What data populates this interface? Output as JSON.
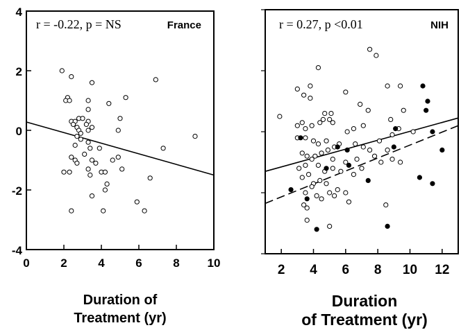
{
  "chart_data": [
    {
      "type": "scatter",
      "panel_label": "France",
      "stat_text": "r = -0.22, p = NS",
      "xlabel_lines": [
        "Duration of",
        "Treatment (yr)"
      ],
      "xlim": [
        0,
        10
      ],
      "ylim": [
        -4,
        4
      ],
      "x_ticks": [
        0,
        2,
        4,
        6,
        8,
        10
      ],
      "y_ticks": [
        -4,
        -2,
        0,
        2,
        4
      ],
      "x_tick_labels": [
        "0",
        "2",
        "4",
        "6",
        "8",
        "10"
      ],
      "y_tick_labels": [
        "-4",
        "-2",
        "0",
        "2",
        "4"
      ],
      "grid": false,
      "series": [
        {
          "marker": "open-circle",
          "points": [
            [
              1.9,
              2.0
            ],
            [
              2.4,
              1.8
            ],
            [
              2.2,
              1.1
            ],
            [
              2.1,
              1.0
            ],
            [
              2.3,
              1.0
            ],
            [
              3.5,
              1.6
            ],
            [
              4.4,
              0.9
            ],
            [
              5.3,
              1.1
            ],
            [
              6.9,
              1.7
            ],
            [
              2.4,
              0.3
            ],
            [
              2.6,
              0.3
            ],
            [
              2.8,
              0.4
            ],
            [
              3.0,
              0.4
            ],
            [
              3.3,
              0.3
            ],
            [
              3.2,
              0.2
            ],
            [
              3.3,
              0.7
            ],
            [
              3.3,
              1.0
            ],
            [
              2.5,
              0.2
            ],
            [
              2.7,
              0.1
            ],
            [
              2.8,
              0.0
            ],
            [
              2.9,
              -0.1
            ],
            [
              2.7,
              -0.2
            ],
            [
              2.9,
              -0.3
            ],
            [
              3.3,
              0.0
            ],
            [
              3.5,
              0.1
            ],
            [
              5.0,
              0.4
            ],
            [
              4.9,
              0.0
            ],
            [
              9.0,
              -0.2
            ],
            [
              2.6,
              -0.5
            ],
            [
              3.3,
              -0.4
            ],
            [
              3.4,
              -0.6
            ],
            [
              3.1,
              -0.8
            ],
            [
              3.9,
              -0.6
            ],
            [
              2.4,
              -0.9
            ],
            [
              2.6,
              -1.0
            ],
            [
              2.7,
              -1.1
            ],
            [
              3.5,
              -1.0
            ],
            [
              3.7,
              -1.1
            ],
            [
              3.3,
              -1.3
            ],
            [
              4.0,
              -1.4
            ],
            [
              4.2,
              -1.4
            ],
            [
              4.9,
              -0.9
            ],
            [
              4.6,
              -1.0
            ],
            [
              5.1,
              -1.3
            ],
            [
              7.3,
              -0.6
            ],
            [
              6.6,
              -1.6
            ],
            [
              2.0,
              -1.4
            ],
            [
              2.3,
              -1.4
            ],
            [
              3.4,
              -1.5
            ],
            [
              4.3,
              -1.8
            ],
            [
              4.2,
              -2.0
            ],
            [
              3.5,
              -2.2
            ],
            [
              5.9,
              -2.4
            ],
            [
              6.3,
              -2.7
            ],
            [
              2.4,
              -2.7
            ],
            [
              4.1,
              -2.7
            ]
          ]
        }
      ],
      "regression_lines": [
        {
          "style": "solid",
          "x": [
            0,
            10
          ],
          "y": [
            0.28,
            -1.5
          ]
        }
      ]
    },
    {
      "type": "scatter",
      "panel_label": "NIH",
      "stat_text": "r = 0.27, p <0.01",
      "xlabel_lines": [
        "Duration",
        "of Treatment (yr)"
      ],
      "xlim": [
        1,
        13
      ],
      "ylim": [
        -4,
        4
      ],
      "x_ticks": [
        2,
        4,
        6,
        8,
        10,
        12
      ],
      "y_ticks": [
        -4,
        -2,
        0,
        2,
        4
      ],
      "x_tick_labels": [
        "2",
        "4",
        "6",
        "8",
        "10",
        "12"
      ],
      "grid": false,
      "series": [
        {
          "marker": "open-circle",
          "points": [
            [
              7.5,
              2.7
            ],
            [
              7.9,
              2.5
            ],
            [
              4.3,
              2.1
            ],
            [
              3.0,
              1.4
            ],
            [
              3.8,
              1.5
            ],
            [
              6.0,
              1.3
            ],
            [
              8.6,
              1.5
            ],
            [
              9.4,
              1.5
            ],
            [
              3.4,
              1.2
            ],
            [
              3.8,
              1.1
            ],
            [
              4.7,
              0.6
            ],
            [
              5.1,
              0.6
            ],
            [
              6.9,
              0.9
            ],
            [
              7.4,
              0.7
            ],
            [
              8.8,
              0.4
            ],
            [
              9.6,
              0.7
            ],
            [
              1.9,
              0.5
            ],
            [
              3.0,
              0.2
            ],
            [
              3.3,
              0.3
            ],
            [
              3.5,
              0.1
            ],
            [
              3.9,
              0.2
            ],
            [
              4.4,
              0.3
            ],
            [
              4.6,
              0.4
            ],
            [
              5.0,
              0.4
            ],
            [
              5.2,
              0.3
            ],
            [
              6.1,
              0.0
            ],
            [
              6.5,
              0.1
            ],
            [
              7.1,
              0.2
            ],
            [
              8.9,
              -0.1
            ],
            [
              9.3,
              0.1
            ],
            [
              10.2,
              0.0
            ],
            [
              3.0,
              -0.2
            ],
            [
              3.5,
              -0.2
            ],
            [
              4.0,
              -0.3
            ],
            [
              4.3,
              -0.4
            ],
            [
              4.8,
              -0.3
            ],
            [
              5.3,
              -0.5
            ],
            [
              5.6,
              -0.4
            ],
            [
              6.6,
              -0.4
            ],
            [
              7.1,
              -0.5
            ],
            [
              7.5,
              -0.6
            ],
            [
              8.1,
              -0.3
            ],
            [
              8.6,
              -0.6
            ],
            [
              3.3,
              -0.7
            ],
            [
              3.6,
              -0.8
            ],
            [
              3.9,
              -0.9
            ],
            [
              4.1,
              -0.8
            ],
            [
              4.5,
              -0.7
            ],
            [
              4.9,
              -0.6
            ],
            [
              5.2,
              -0.9
            ],
            [
              6.0,
              -1.0
            ],
            [
              6.7,
              -0.9
            ],
            [
              7.8,
              -0.8
            ],
            [
              8.2,
              -1.0
            ],
            [
              8.9,
              -0.9
            ],
            [
              9.4,
              -1.0
            ],
            [
              3.1,
              -1.2
            ],
            [
              3.5,
              -1.1
            ],
            [
              4.3,
              -1.1
            ],
            [
              4.7,
              -1.3
            ],
            [
              5.2,
              -1.2
            ],
            [
              5.7,
              -1.3
            ],
            [
              6.5,
              -1.4
            ],
            [
              7.0,
              -1.2
            ],
            [
              3.3,
              -1.5
            ],
            [
              3.7,
              -1.4
            ],
            [
              4.0,
              -1.7
            ],
            [
              4.4,
              -1.6
            ],
            [
              4.8,
              -1.7
            ],
            [
              3.5,
              -2.0
            ],
            [
              3.9,
              -1.8
            ],
            [
              4.2,
              -2.1
            ],
            [
              5.0,
              -2.0
            ],
            [
              5.5,
              -1.9
            ],
            [
              6.0,
              -2.0
            ],
            [
              3.4,
              -2.4
            ],
            [
              3.6,
              -2.5
            ],
            [
              4.5,
              -2.2
            ],
            [
              5.3,
              -2.1
            ],
            [
              6.2,
              -2.3
            ],
            [
              8.5,
              -2.4
            ],
            [
              3.6,
              -2.9
            ],
            [
              5.0,
              -3.1
            ]
          ]
        },
        {
          "marker": "filled-circle",
          "points": [
            [
              10.8,
              1.5
            ],
            [
              11.1,
              1.0
            ],
            [
              11.0,
              0.7
            ],
            [
              9.1,
              0.1
            ],
            [
              11.4,
              0.0
            ],
            [
              3.2,
              -0.2
            ],
            [
              5.5,
              -0.5
            ],
            [
              6.1,
              -0.6
            ],
            [
              9.0,
              -0.5
            ],
            [
              6.2,
              -1.1
            ],
            [
              4.8,
              -1.2
            ],
            [
              7.4,
              -1.6
            ],
            [
              10.6,
              -1.5
            ],
            [
              11.4,
              -1.7
            ],
            [
              12.0,
              -0.6
            ],
            [
              2.6,
              -1.9
            ],
            [
              3.6,
              -2.2
            ],
            [
              4.2,
              -3.2
            ],
            [
              8.6,
              -3.1
            ]
          ]
        }
      ],
      "regression_lines": [
        {
          "style": "solid",
          "x": [
            1,
            13
          ],
          "y": [
            -1.3,
            0.45
          ]
        },
        {
          "style": "dashed",
          "x": [
            1,
            13
          ],
          "y": [
            -2.35,
            0.2
          ]
        }
      ]
    }
  ]
}
